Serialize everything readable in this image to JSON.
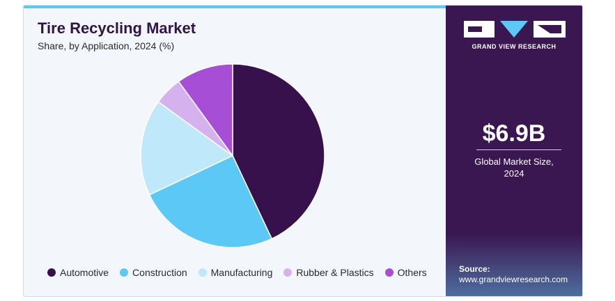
{
  "header": {
    "title": "Tire Recycling Market",
    "subtitle": "Share, by Application, 2024 (%)"
  },
  "chart_data": {
    "type": "pie",
    "start_angle_deg": 0,
    "direction": "clockwise",
    "slices": [
      {
        "label": "Automotive",
        "value": 43,
        "color": "#37114b"
      },
      {
        "label": "Construction",
        "value": 25,
        "color": "#5bc8f5"
      },
      {
        "label": "Manufacturing",
        "value": 17,
        "color": "#bfe8fa"
      },
      {
        "label": "Rubber & Plastics",
        "value": 5,
        "color": "#d5b2ee"
      },
      {
        "label": "Others",
        "value": 10,
        "color": "#a64fd6"
      }
    ],
    "legend_position": "bottom"
  },
  "sidebar": {
    "logo_text": "GRAND VIEW RESEARCH",
    "market_size": "$6.9B",
    "market_size_line1": "Global Market Size,",
    "market_size_line2": "2024",
    "source_label": "Source:",
    "source_url": "www.grandviewresearch.com"
  }
}
